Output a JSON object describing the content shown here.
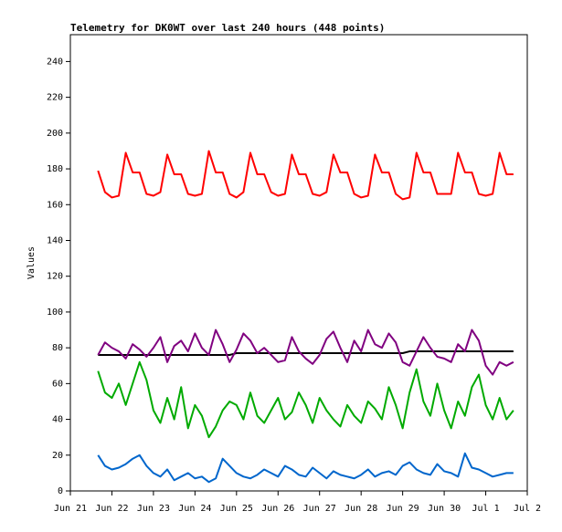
{
  "chart_data": {
    "type": "line",
    "title": "Telemetry for DK0WT over last 240 hours (448 points)",
    "y_label": "Values",
    "x": [
      16,
      20,
      24,
      28,
      32,
      36,
      40,
      44,
      48,
      52,
      56,
      60,
      64,
      68,
      72,
      76,
      80,
      84,
      88,
      92,
      96,
      100,
      104,
      108,
      112,
      116,
      120,
      124,
      128,
      132,
      136,
      140,
      144,
      148,
      152,
      156,
      160,
      164,
      168,
      172,
      176,
      180,
      184,
      188,
      192,
      196,
      200,
      204,
      208,
      212,
      216,
      220,
      224,
      228,
      232,
      236,
      240,
      244,
      248,
      252,
      256
    ],
    "xlim": [
      0,
      264
    ],
    "xticks": [
      {
        "value": 0,
        "label": "Jun 21"
      },
      {
        "value": 24,
        "label": "Jun 22"
      },
      {
        "value": 48,
        "label": "Jun 23"
      },
      {
        "value": 72,
        "label": "Jun 24"
      },
      {
        "value": 96,
        "label": "Jun 25"
      },
      {
        "value": 120,
        "label": "Jun 26"
      },
      {
        "value": 144,
        "label": "Jun 27"
      },
      {
        "value": 168,
        "label": "Jun 28"
      },
      {
        "value": 192,
        "label": "Jun 29"
      },
      {
        "value": 216,
        "label": "Jun 30"
      },
      {
        "value": 240,
        "label": "Jul 1"
      },
      {
        "value": 264,
        "label": "Jul 2"
      }
    ],
    "ylim": [
      0,
      255
    ],
    "yticks": [
      0,
      20,
      40,
      60,
      80,
      100,
      120,
      140,
      160,
      180,
      200,
      220,
      240
    ],
    "grid": false,
    "series": [
      {
        "color": "#ff0000",
        "values": [
          179,
          167,
          164,
          165,
          189,
          178,
          178,
          166,
          165,
          167,
          188,
          177,
          177,
          166,
          165,
          166,
          190,
          178,
          178,
          166,
          164,
          167,
          189,
          177,
          177,
          167,
          165,
          166,
          188,
          177,
          177,
          166,
          165,
          167,
          188,
          178,
          178,
          166,
          164,
          165,
          188,
          178,
          178,
          166,
          163,
          164,
          189,
          178,
          178,
          166,
          166,
          166,
          189,
          178,
          178,
          166,
          165,
          166,
          189,
          177,
          177
        ]
      },
      {
        "color": "#000000",
        "values": [
          76,
          76,
          76,
          76,
          76,
          76,
          76,
          76,
          76,
          76,
          76,
          76,
          76,
          76,
          76,
          76,
          76,
          76,
          76,
          76,
          77,
          77,
          77,
          77,
          77,
          77,
          77,
          77,
          77,
          77,
          77,
          77,
          77,
          77,
          77,
          77,
          77,
          77,
          77,
          77,
          77,
          77,
          77,
          77,
          77,
          78,
          78,
          78,
          78,
          78,
          78,
          78,
          78,
          78,
          78,
          78,
          78,
          78,
          78,
          78,
          78
        ]
      },
      {
        "color": "#800080",
        "values": [
          76,
          83,
          80,
          78,
          74,
          82,
          79,
          75,
          80,
          86,
          72,
          81,
          84,
          78,
          88,
          80,
          76,
          90,
          82,
          72,
          79,
          88,
          84,
          77,
          80,
          76,
          72,
          73,
          86,
          78,
          74,
          71,
          76,
          85,
          89,
          80,
          72,
          84,
          78,
          90,
          82,
          80,
          88,
          83,
          72,
          70,
          78,
          86,
          80,
          75,
          74,
          72,
          82,
          78,
          90,
          84,
          70,
          65,
          72,
          70,
          72
        ]
      },
      {
        "color": "#00aa00",
        "values": [
          67,
          55,
          52,
          60,
          48,
          60,
          72,
          62,
          45,
          38,
          52,
          40,
          58,
          35,
          48,
          42,
          30,
          36,
          45,
          50,
          48,
          40,
          55,
          42,
          38,
          45,
          52,
          40,
          44,
          55,
          48,
          38,
          52,
          45,
          40,
          36,
          48,
          42,
          38,
          50,
          46,
          40,
          58,
          48,
          35,
          55,
          68,
          50,
          42,
          60,
          45,
          35,
          50,
          42,
          58,
          65,
          48,
          40,
          52,
          40,
          45
        ]
      },
      {
        "color": "#0066cc",
        "values": [
          20,
          14,
          12,
          13,
          15,
          18,
          20,
          14,
          10,
          8,
          12,
          6,
          8,
          10,
          7,
          8,
          5,
          7,
          18,
          14,
          10,
          8,
          7,
          9,
          12,
          10,
          8,
          14,
          12,
          9,
          8,
          13,
          10,
          7,
          11,
          9,
          8,
          7,
          9,
          12,
          8,
          10,
          11,
          9,
          14,
          16,
          12,
          10,
          9,
          15,
          11,
          10,
          8,
          21,
          13,
          12,
          10,
          8,
          9,
          10,
          10
        ]
      }
    ]
  }
}
